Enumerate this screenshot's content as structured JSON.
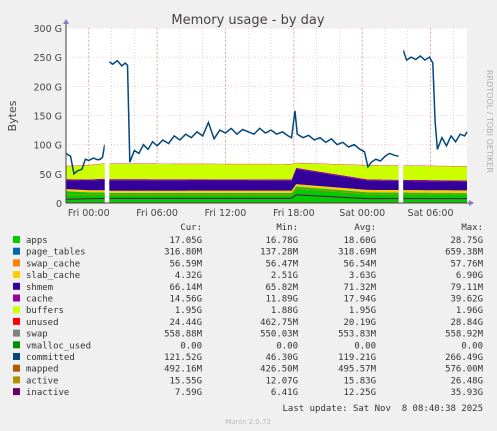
{
  "chart_data": {
    "type": "area",
    "title": "Memory usage - by day",
    "ylabel": "Bytes",
    "side_label": "RRDTOOL / TOBI OETIKER",
    "ylim": [
      0,
      300
    ],
    "y_unit": "G",
    "y_ticks": [
      "0",
      "50 G",
      "100 G",
      "150 G",
      "200 G",
      "250 G",
      "300 G"
    ],
    "x_ticks": [
      "Fri 00:00",
      "Fri 06:00",
      "Fri 12:00",
      "Fri 18:00",
      "Sat 00:00",
      "Sat 06:00"
    ],
    "x_range_hours": [
      -2.0,
      33.2
    ],
    "x_tick_hours": [
      0,
      6,
      12,
      18,
      24,
      30
    ],
    "gaps_hours": [
      [
        1.4,
        1.8
      ],
      [
        27.2,
        27.6
      ]
    ],
    "legend_headers": [
      "Cur:",
      "Min:",
      "Avg:",
      "Max:"
    ],
    "series": [
      {
        "name": "apps",
        "color": "#00cc00",
        "cur": "17.05G",
        "min": "16.78G",
        "avg": "18.60G",
        "max": "28.75G"
      },
      {
        "name": "page_tables",
        "color": "#0066b3",
        "cur": "316.80M",
        "min": "137.28M",
        "avg": "318.69M",
        "max": "659.38M"
      },
      {
        "name": "swap_cache",
        "color": "#ff8000",
        "cur": "56.59M",
        "min": "56.47M",
        "avg": "56.54M",
        "max": "57.76M"
      },
      {
        "name": "slab_cache",
        "color": "#ffcc00",
        "cur": "4.32G",
        "min": "2.51G",
        "avg": "3.63G",
        "max": "6.90G"
      },
      {
        "name": "shmem",
        "color": "#330099",
        "cur": "66.14M",
        "min": "65.82M",
        "avg": "71.32M",
        "max": "79.11M"
      },
      {
        "name": "cache",
        "color": "#990099",
        "cur": "14.56G",
        "min": "11.89G",
        "avg": "17.94G",
        "max": "39.62G"
      },
      {
        "name": "buffers",
        "color": "#ccff00",
        "cur": "1.95G",
        "min": "1.88G",
        "avg": "1.95G",
        "max": "1.96G"
      },
      {
        "name": "unused",
        "color": "#ff0000",
        "cur": "24.44G",
        "min": "462.75M",
        "avg": "20.19G",
        "max": "28.84G"
      },
      {
        "name": "swap",
        "color": "#808080",
        "cur": "558.88M",
        "min": "550.03M",
        "avg": "553.83M",
        "max": "558.92M"
      },
      {
        "name": "vmalloc_used",
        "color": "#008f00",
        "cur": "0.00",
        "min": "0.00",
        "avg": "0.00",
        "max": "0.00"
      },
      {
        "name": "committed",
        "color": "#00487d",
        "cur": "121.52G",
        "min": "46.30G",
        "avg": "119.21G",
        "max": "266.49G"
      },
      {
        "name": "mapped",
        "color": "#b35a00",
        "cur": "492.16M",
        "min": "426.50M",
        "avg": "495.57M",
        "max": "576.00M"
      },
      {
        "name": "active",
        "color": "#b38f00",
        "cur": "15.55G",
        "min": "12.07G",
        "avg": "15.83G",
        "max": "26.48G"
      },
      {
        "name": "inactive",
        "color": "#6b006b",
        "cur": "7.59G",
        "min": "6.41G",
        "avg": "12.25G",
        "max": "35.93G"
      }
    ],
    "stack": [
      {
        "name": "apps",
        "color": "#00cc00",
        "segments": [
          [
            -2,
            20
          ],
          [
            0,
            18
          ],
          [
            1.4,
            18
          ],
          [
            1.8,
            17
          ],
          [
            17.8,
            17
          ],
          [
            18.2,
            28
          ],
          [
            24.5,
            18
          ],
          [
            33.2,
            17
          ]
        ]
      },
      {
        "name": "page_tables",
        "color": "#0066b3",
        "segments": [
          [
            -2,
            0.3
          ],
          [
            33.2,
            0.3
          ]
        ]
      },
      {
        "name": "slab_cache",
        "color": "#ffcc00",
        "segments": [
          [
            -2,
            3.6
          ],
          [
            33.2,
            4.3
          ]
        ]
      },
      {
        "name": "cache",
        "color": "#330099",
        "segments": [
          [
            -2,
            15
          ],
          [
            1.8,
            18
          ],
          [
            17.8,
            17
          ],
          [
            18.2,
            26
          ],
          [
            24.5,
            16
          ],
          [
            33.2,
            15
          ]
        ]
      },
      {
        "name": "buffers",
        "color": "#990099",
        "segments": [
          [
            -2,
            2
          ],
          [
            33.2,
            2
          ]
        ]
      },
      {
        "name": "unused",
        "color": "#ccff00",
        "segments": [
          [
            -2,
            22
          ],
          [
            1.8,
            26
          ],
          [
            17.8,
            26
          ],
          [
            18.2,
            8
          ],
          [
            24.5,
            24
          ],
          [
            33.2,
            24
          ]
        ]
      },
      {
        "name": "swap",
        "color": "#ff0000",
        "segments": [
          [
            -2,
            0.6
          ],
          [
            33.2,
            0.6
          ]
        ]
      }
    ],
    "lines": [
      {
        "name": "active",
        "color": "#b38f00",
        "points": [
          [
            -2,
            14
          ],
          [
            1.4,
            15
          ],
          [
            1.8,
            14
          ],
          [
            17.8,
            14
          ],
          [
            18.2,
            25
          ],
          [
            24.5,
            15
          ],
          [
            33.2,
            15.5
          ]
        ]
      },
      {
        "name": "inactive",
        "color": "#6b006b",
        "points": [
          [
            -2,
            6.5
          ],
          [
            1.8,
            8
          ],
          [
            17.8,
            8
          ],
          [
            18.2,
            14
          ],
          [
            24.5,
            7.5
          ],
          [
            33.2,
            7.6
          ]
        ]
      },
      {
        "name": "mapped",
        "color": "#b35a00",
        "points": [
          [
            -2,
            0.5
          ],
          [
            33.2,
            0.5
          ]
        ]
      }
    ],
    "committed_line": {
      "color": "#00487d",
      "points": [
        [
          -2.0,
          85
        ],
        [
          -1.6,
          80
        ],
        [
          -1.3,
          50
        ],
        [
          -1.0,
          55
        ],
        [
          -0.6,
          58
        ],
        [
          -0.3,
          75
        ],
        [
          0.0,
          73
        ],
        [
          0.4,
          77
        ],
        [
          0.8,
          74
        ],
        [
          1.0,
          75
        ],
        [
          1.2,
          78
        ],
        [
          1.4,
          100
        ],
        [
          1.8,
          242
        ],
        [
          2.1,
          238
        ],
        [
          2.5,
          244
        ],
        [
          2.9,
          235
        ],
        [
          3.2,
          240
        ],
        [
          3.4,
          236
        ],
        [
          3.6,
          70
        ],
        [
          4.0,
          90
        ],
        [
          4.4,
          85
        ],
        [
          4.8,
          100
        ],
        [
          5.2,
          92
        ],
        [
          5.6,
          105
        ],
        [
          6.0,
          98
        ],
        [
          6.5,
          108
        ],
        [
          7.0,
          102
        ],
        [
          7.5,
          115
        ],
        [
          8.0,
          108
        ],
        [
          8.5,
          118
        ],
        [
          9.0,
          112
        ],
        [
          9.5,
          122
        ],
        [
          10.0,
          115
        ],
        [
          10.5,
          138
        ],
        [
          11.0,
          110
        ],
        [
          11.5,
          125
        ],
        [
          12.0,
          120
        ],
        [
          12.5,
          128
        ],
        [
          13.0,
          118
        ],
        [
          13.5,
          126
        ],
        [
          14.0,
          122
        ],
        [
          14.5,
          118
        ],
        [
          15.0,
          128
        ],
        [
          15.5,
          120
        ],
        [
          16.0,
          125
        ],
        [
          16.5,
          118
        ],
        [
          17.0,
          122
        ],
        [
          17.5,
          115
        ],
        [
          17.8,
          112
        ],
        [
          18.1,
          158
        ],
        [
          18.3,
          118
        ],
        [
          18.8,
          112
        ],
        [
          19.3,
          116
        ],
        [
          19.8,
          108
        ],
        [
          20.3,
          112
        ],
        [
          20.8,
          104
        ],
        [
          21.3,
          110
        ],
        [
          21.8,
          100
        ],
        [
          22.3,
          104
        ],
        [
          22.8,
          96
        ],
        [
          23.3,
          100
        ],
        [
          23.8,
          92
        ],
        [
          24.2,
          88
        ],
        [
          24.5,
          62
        ],
        [
          24.8,
          70
        ],
        [
          25.2,
          75
        ],
        [
          25.6,
          72
        ],
        [
          26.0,
          80
        ],
        [
          26.4,
          85
        ],
        [
          26.8,
          82
        ],
        [
          27.2,
          80
        ],
        [
          27.6,
          262
        ],
        [
          27.9,
          245
        ],
        [
          28.3,
          250
        ],
        [
          28.7,
          246
        ],
        [
          29.1,
          252
        ],
        [
          29.5,
          245
        ],
        [
          29.9,
          250
        ],
        [
          30.2,
          240
        ],
        [
          30.4,
          140
        ],
        [
          30.6,
          92
        ],
        [
          31.0,
          112
        ],
        [
          31.4,
          98
        ],
        [
          31.8,
          115
        ],
        [
          32.2,
          105
        ],
        [
          32.6,
          118
        ],
        [
          33.0,
          115
        ],
        [
          33.2,
          122
        ]
      ]
    }
  },
  "footer": {
    "last_update": "Last update: Sat Nov  8 08:40:38 2025",
    "version": "Munin 2.0.73"
  }
}
